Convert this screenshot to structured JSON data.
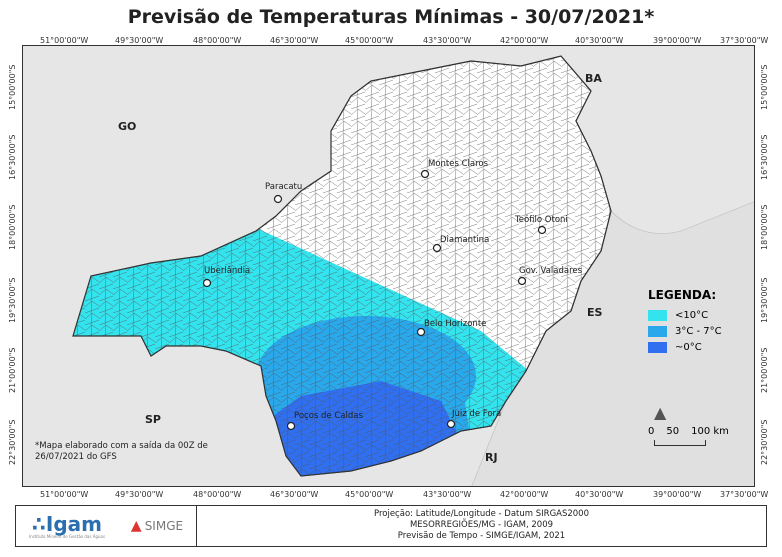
{
  "title": "Previsão de Temperaturas Mínimas - 30/07/2021*",
  "lon_ticks": [
    "51°00'00\"W",
    "49°30'00\"W",
    "48°00'00\"W",
    "46°30'00\"W",
    "45°00'00\"W",
    "43°30'00\"W",
    "42°00'00\"W",
    "40°30'00\"W",
    "39°00'00\"W",
    "37°30'00\"W"
  ],
  "lat_ticks": [
    "15°00'00\"S",
    "16°30'00\"S",
    "18°00'00\"S",
    "19°30'00\"S",
    "21°00'00\"S",
    "22°30'00\"S"
  ],
  "states": [
    "BA",
    "GO",
    "ES",
    "SP",
    "RJ"
  ],
  "cities": [
    "Paracatu",
    "Montes Claros",
    "Teófilo Otoni",
    "Diamantina",
    "Gov. Valadares",
    "Uberlândia",
    "Belo Horizonte",
    "Juiz de Fora",
    "Poços de Caldas"
  ],
  "legend": {
    "title": "LEGENDA:",
    "items": [
      {
        "label": "<10°C",
        "color": "#33e3ee"
      },
      {
        "label": "3°C - 7°C",
        "color": "#2aa8ec"
      },
      {
        "label": "~0°C",
        "color": "#2f6ff0"
      }
    ]
  },
  "scale": {
    "labels": [
      "0",
      "50",
      "100 km"
    ]
  },
  "note": "*Mapa elaborado com a saída da 00Z de 26/07/2021 do GFS",
  "footer": {
    "org1": "Igam",
    "org1_sub": "Instituto Mineiro de Gestão das Águas",
    "org2": "SIMGE",
    "lines": [
      "Projeção: Latitude/Longitude - Datum SIRGAS2000",
      "MESORREGIÕES/MG - IGAM, 2009",
      "Previsão de Tempo - SIMGE/IGAM, 2021"
    ]
  }
}
